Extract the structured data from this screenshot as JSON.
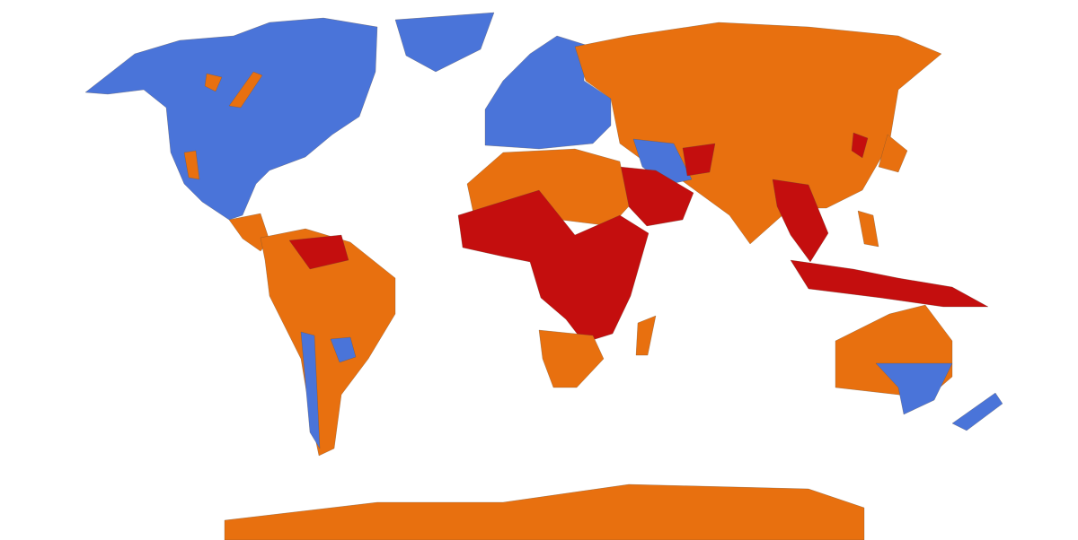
{
  "map": {
    "projection": "world",
    "legend": "none",
    "colors": {
      "blue": "#4a74d9",
      "orange": "#e8700f",
      "red": "#c40e0e",
      "background": "#ffffff"
    }
  }
}
